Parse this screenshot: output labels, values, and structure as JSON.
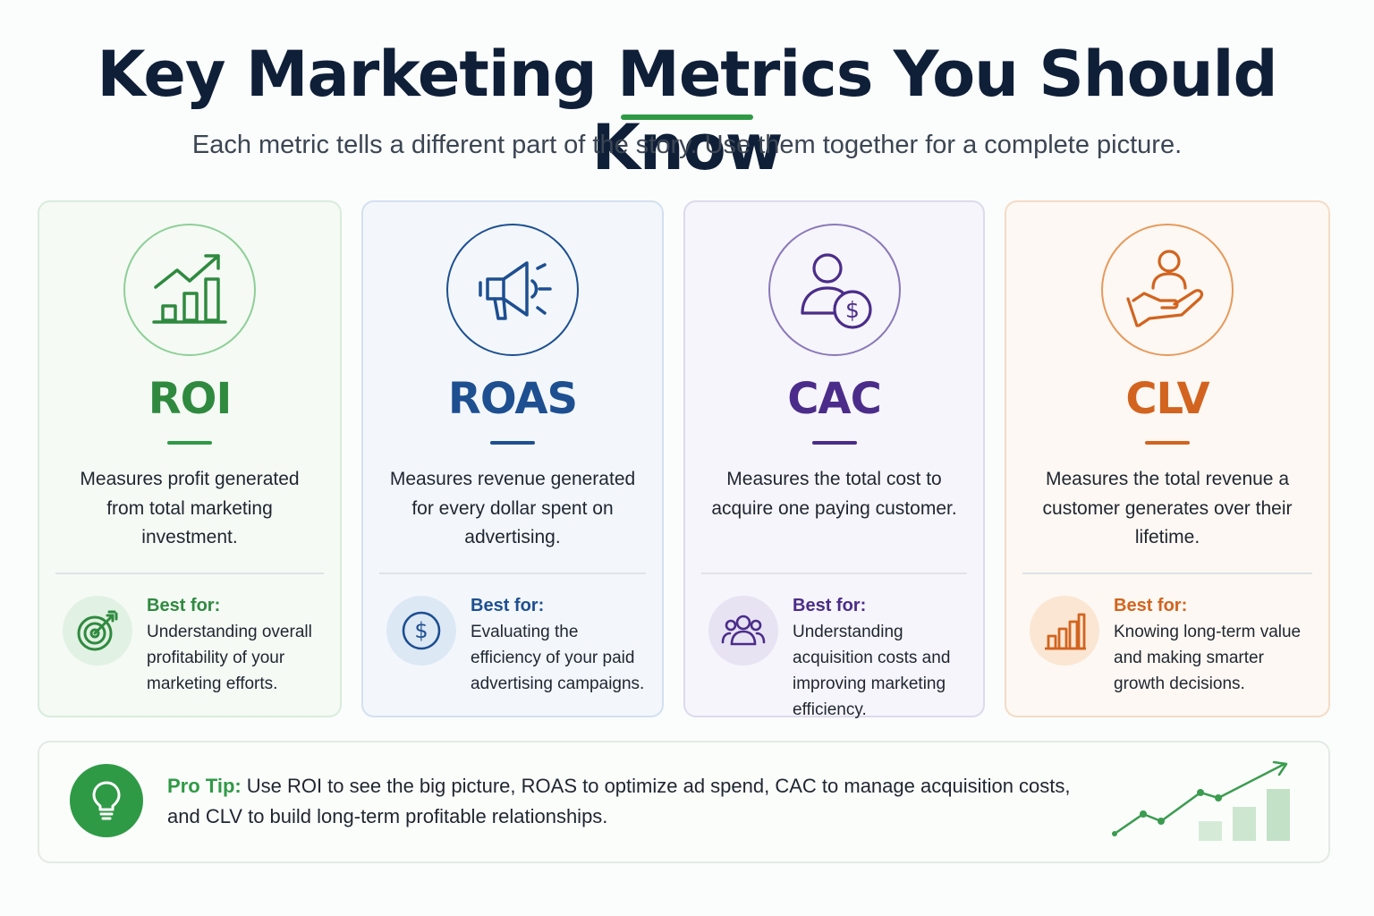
{
  "header": {
    "title": "Key Marketing Metrics You Should Know",
    "subtitle": "Each metric tells a different part of the story. Use them together for a complete picture."
  },
  "cards": [
    {
      "name": "ROI",
      "color": "#2f8a3f",
      "icon": "growth-chart-icon",
      "description": "Measures profit generated from total marketing investment.",
      "best_for_label": "Best for:",
      "best_for_icon": "target-icon",
      "best_for_text": "Understanding overall profitability of your marketing efforts."
    },
    {
      "name": "ROAS",
      "color": "#1d4f91",
      "icon": "megaphone-icon",
      "description": "Measures revenue generated for every dollar spent on advertising.",
      "best_for_label": "Best for:",
      "best_for_icon": "dollar-coin-icon",
      "best_for_text": "Evaluating the efficiency of your paid advertising campaigns."
    },
    {
      "name": "CAC",
      "color": "#4b2c8a",
      "icon": "user-dollar-icon",
      "description": "Measures the total cost to acquire one paying customer.",
      "best_for_label": "Best for:",
      "best_for_icon": "users-group-icon",
      "best_for_text": "Understanding acquisition costs and improving marketing efficiency."
    },
    {
      "name": "CLV",
      "color": "#d2641f",
      "icon": "hand-user-icon",
      "description": "Measures the total revenue a customer generates over their lifetime.",
      "best_for_label": "Best for:",
      "best_for_icon": "bar-chart-icon",
      "best_for_text": "Knowing long-term value and making smarter growth decisions."
    }
  ],
  "pro_tip": {
    "label": "Pro Tip:",
    "text": "Use ROI to see the big picture, ROAS to optimize ad spend, CAC to manage acquisition costs, and CLV to build long-term profitable relationships.",
    "icon": "lightbulb-icon",
    "decoration_icon": "trend-chart-icon"
  }
}
